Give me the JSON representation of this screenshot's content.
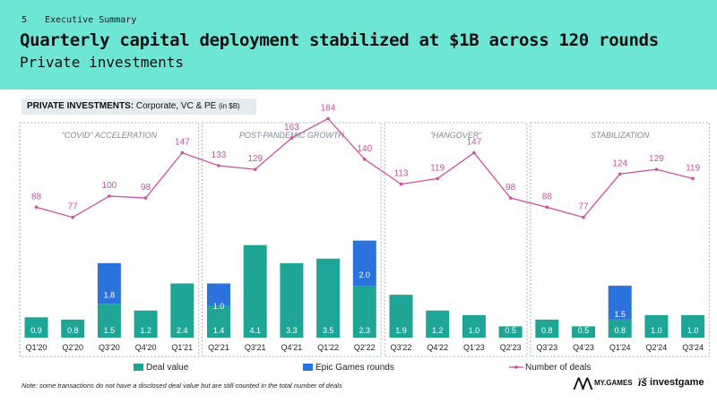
{
  "header": {
    "page_number": "5",
    "section": "Executive Summary",
    "title": "Quarterly capital deployment stabilized at $1B across 120 rounds",
    "subtitle": "Private investments"
  },
  "chart_label": {
    "bold": "PRIVATE INVESTMENTS:",
    "text": " Corporate, VC & PE ",
    "unit": "(in $B)"
  },
  "note": "Note: some transactions do not have a disclosed deal value but are still counted in the total number of deals",
  "logos": {
    "mygames": "MY.GAMES",
    "investgame": "investgame"
  },
  "colors": {
    "deal": "#1fa596",
    "epic": "#2c72dc",
    "line": "#cf4f9f",
    "header": "#6ee6d6"
  },
  "chart_data": {
    "type": "bar",
    "categories": [
      "Q1'20",
      "Q2'20",
      "Q3'20",
      "Q4'20",
      "Q1'21",
      "Q2'21",
      "Q3'21",
      "Q4'21",
      "Q1'22",
      "Q2'22",
      "Q3'22",
      "Q4'22",
      "Q1'23",
      "Q2'23",
      "Q3'23",
      "Q4'23",
      "Q1'24",
      "Q2'24",
      "Q3'24"
    ],
    "series": [
      {
        "name": "Deal value",
        "values": [
          0.9,
          0.8,
          1.5,
          1.2,
          2.4,
          1.4,
          4.1,
          3.3,
          3.5,
          2.3,
          1.9,
          1.2,
          1.0,
          0.5,
          0.8,
          0.5,
          0.8,
          1.0,
          1.0
        ]
      },
      {
        "name": "Epic Games rounds",
        "values": [
          0,
          0,
          1.8,
          0,
          0,
          1.0,
          0,
          0,
          0,
          2.0,
          0,
          0,
          0,
          0,
          0,
          0,
          1.5,
          0,
          0
        ]
      },
      {
        "name": "Number of deals",
        "values": [
          88,
          77,
          100,
          98,
          147,
          133,
          129,
          163,
          184,
          140,
          113,
          119,
          147,
          98,
          88,
          77,
          124,
          129,
          119
        ]
      }
    ],
    "periods": [
      {
        "label": "\"COVID\" ACCELERATION",
        "start": 0,
        "end": 4
      },
      {
        "label": "POST-PANDEMIC GROWTH",
        "start": 5,
        "end": 9
      },
      {
        "label": "\"HANGOVER\"",
        "start": 10,
        "end": 13
      },
      {
        "label": "STABILIZATION",
        "start": 14,
        "end": 18
      }
    ],
    "legend_position": "bottom"
  }
}
